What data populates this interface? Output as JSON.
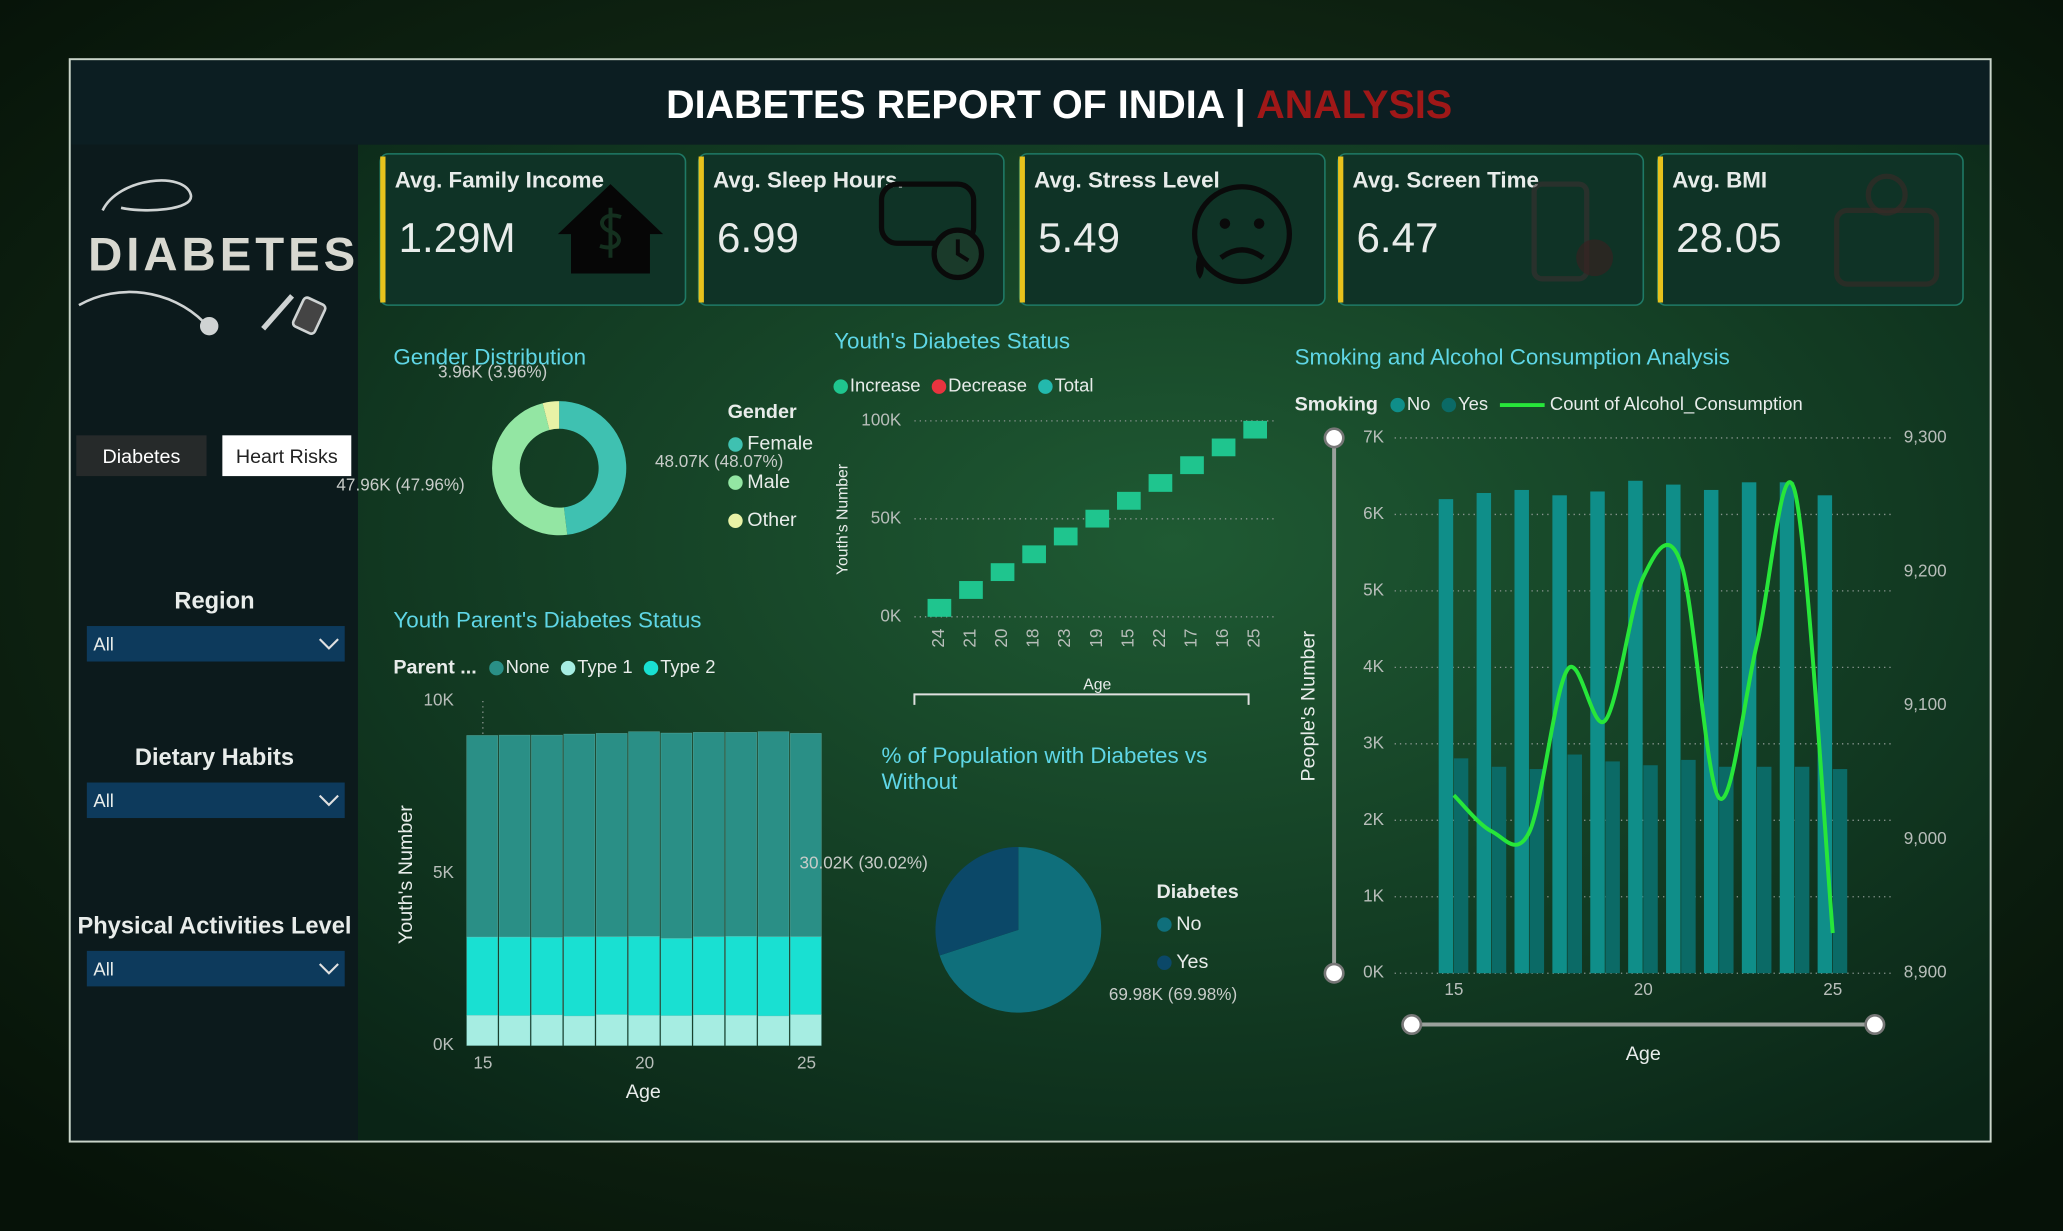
{
  "header": {
    "title": "DIABETES REPORT OF INDIA |",
    "title_accent": "ANALYSIS"
  },
  "sidebar": {
    "logo": "DIABETES",
    "tabs": [
      "Diabetes",
      "Heart Risks"
    ],
    "filters": [
      {
        "label": "Region",
        "value": "All"
      },
      {
        "label": "Dietary Habits",
        "value": "All"
      },
      {
        "label": "Physical Activities Level",
        "value": "All"
      }
    ]
  },
  "kpis": [
    {
      "label": "Avg. Family Income",
      "value": "1.29M"
    },
    {
      "label": "Avg. Sleep Hours.",
      "value": "6.99"
    },
    {
      "label": "Avg. Stress Level",
      "value": "5.49"
    },
    {
      "label": "Avg. Screen Time",
      "value": "6.47"
    },
    {
      "label": "Avg. BMI",
      "value": "28.05"
    }
  ],
  "chart_data": [
    {
      "type": "pie",
      "donut": true,
      "title": "Gender Distribution",
      "legend_title": "Gender",
      "categories": [
        "Female",
        "Male",
        "Other"
      ],
      "values": [
        48070,
        47960,
        3960
      ],
      "value_labels": [
        "48.07K (48.07%)",
        "47.96K (47.96%)",
        "3.96K (3.96%)"
      ],
      "colors": [
        "#3fc1b1",
        "#93e6a3",
        "#e8f2a6"
      ]
    },
    {
      "type": "waterfall",
      "title": "Youth's Diabetes Status",
      "legend": [
        {
          "name": "Increase",
          "color": "#1fc58e"
        },
        {
          "name": "Decrease",
          "color": "#e8343f"
        },
        {
          "name": "Total",
          "color": "#23b9ad"
        }
      ],
      "categories": [
        "24",
        "21",
        "20",
        "18",
        "23",
        "19",
        "15",
        "22",
        "17",
        "16",
        "25"
      ],
      "values": [
        9140,
        9120,
        9100,
        9090,
        9110,
        9080,
        9130,
        9060,
        9100,
        9050,
        9020
      ],
      "ylim": [
        0,
        100000
      ],
      "yticks": [
        {
          "value": 0,
          "label": "0K"
        },
        {
          "value": 50000,
          "label": "50K"
        },
        {
          "value": 100000,
          "label": "100K"
        }
      ],
      "xlabel": "Age",
      "ylabel": "Youth's Number",
      "grid": true
    },
    {
      "type": "bar",
      "stacked": true,
      "title": "Youth Parent's Diabetes Status",
      "legend_title": "Parent ...",
      "x": [
        15,
        16,
        17,
        18,
        19,
        20,
        21,
        22,
        23,
        24,
        25
      ],
      "series": [
        {
          "name": "None",
          "color": "#2a8f86",
          "values": [
            5850,
            5860,
            5870,
            5880,
            5900,
            5940,
            5960,
            5930,
            5920,
            5950,
            5900
          ]
        },
        {
          "name": "Type 1",
          "color": "#a6ede2",
          "values": [
            880,
            870,
            890,
            860,
            900,
            880,
            870,
            890,
            880,
            860,
            900
          ]
        },
        {
          "name": "Type 2",
          "color": "#19e0d2",
          "values": [
            2270,
            2280,
            2250,
            2300,
            2260,
            2290,
            2240,
            2270,
            2290,
            2300,
            2260
          ]
        }
      ],
      "xlim": [
        15,
        25
      ],
      "xticks": [
        15,
        20,
        25
      ],
      "ylim": [
        0,
        10000
      ],
      "yticks": [
        {
          "value": 0,
          "label": "0K"
        },
        {
          "value": 5000,
          "label": "5K"
        },
        {
          "value": 10000,
          "label": "10K"
        }
      ],
      "xlabel": "Age",
      "ylabel": "Youth's Number",
      "grid": true
    },
    {
      "type": "pie",
      "donut": false,
      "title": "% of Population with Diabetes vs Without",
      "legend_title": "Diabetes",
      "categories": [
        "No",
        "Yes"
      ],
      "values": [
        69980,
        30020
      ],
      "value_labels": [
        "69.98K (69.98%)",
        "30.02K (30.02%)"
      ],
      "colors": [
        "#0f6f7b",
        "#0b4868"
      ]
    },
    {
      "type": "combo",
      "title": "Smoking and Alcohol Consumption Analysis",
      "legend_title": "Smoking",
      "x": [
        15,
        16,
        17,
        18,
        19,
        20,
        21,
        22,
        23,
        24,
        25
      ],
      "series": [
        {
          "name": "No",
          "color": "#0f8e89",
          "values": [
            6200,
            6280,
            6320,
            6250,
            6300,
            6440,
            6390,
            6320,
            6420,
            6420,
            6250
          ]
        },
        {
          "name": "Yes",
          "color": "#0b6a66",
          "values": [
            2810,
            2700,
            2670,
            2860,
            2770,
            2720,
            2790,
            2700,
            2700,
            2700,
            2670
          ]
        },
        {
          "name": "Count of Alcohol_Consumption",
          "color": "#27e63a",
          "type": "line",
          "axis": "y2",
          "values": [
            9033,
            9006,
            9006,
            9127,
            9089,
            9196,
            9206,
            9031,
            9146,
            9260,
            8930
          ]
        }
      ],
      "xlim": [
        15,
        25
      ],
      "xticks": [
        15,
        20,
        25
      ],
      "ylim": [
        0,
        7000
      ],
      "yticks": [
        {
          "value": 0,
          "label": "0K"
        },
        {
          "value": 1000,
          "label": "1K"
        },
        {
          "value": 2000,
          "label": "2K"
        },
        {
          "value": 3000,
          "label": "3K"
        },
        {
          "value": 4000,
          "label": "4K"
        },
        {
          "value": 5000,
          "label": "5K"
        },
        {
          "value": 6000,
          "label": "6K"
        },
        {
          "value": 7000,
          "label": "7K"
        }
      ],
      "y2lim": [
        8900,
        9300
      ],
      "y2ticks": [
        {
          "value": 8900,
          "label": "8,900"
        },
        {
          "value": 9000,
          "label": "9,000"
        },
        {
          "value": 9100,
          "label": "9,100"
        },
        {
          "value": 9200,
          "label": "9,200"
        },
        {
          "value": 9300,
          "label": "9,300"
        }
      ],
      "xlabel": "Age",
      "ylabel": "People's Number",
      "grid": true
    }
  ]
}
